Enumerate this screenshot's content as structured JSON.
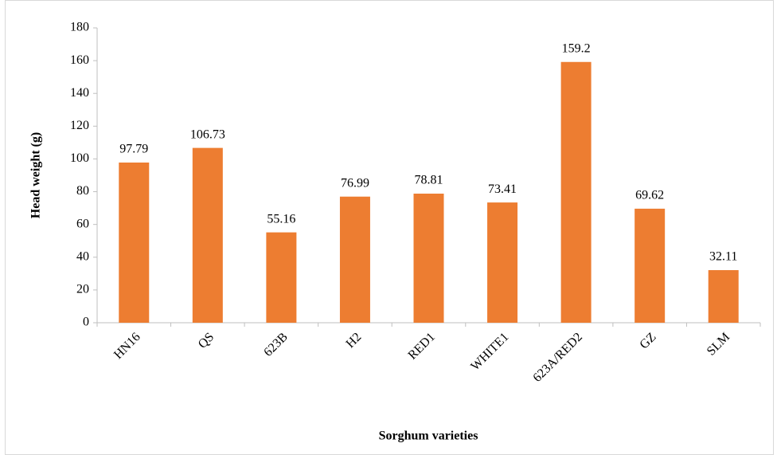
{
  "chart_data": {
    "type": "bar",
    "categories": [
      "HN16",
      "QS",
      "623B",
      "H2",
      "RED1",
      "WHITE1",
      "623A/RED2",
      "GZ",
      "SLM"
    ],
    "values": [
      97.79,
      106.73,
      55.16,
      76.99,
      78.81,
      73.41,
      159.2,
      69.62,
      32.11
    ],
    "color": "#ed7d31",
    "xlabel": "Sorghum varieties",
    "ylabel": "Head weight (g)",
    "ylim": [
      0,
      180
    ],
    "yticks": [
      0,
      20,
      40,
      60,
      80,
      100,
      120,
      140,
      160,
      180
    ],
    "grid": false
  }
}
